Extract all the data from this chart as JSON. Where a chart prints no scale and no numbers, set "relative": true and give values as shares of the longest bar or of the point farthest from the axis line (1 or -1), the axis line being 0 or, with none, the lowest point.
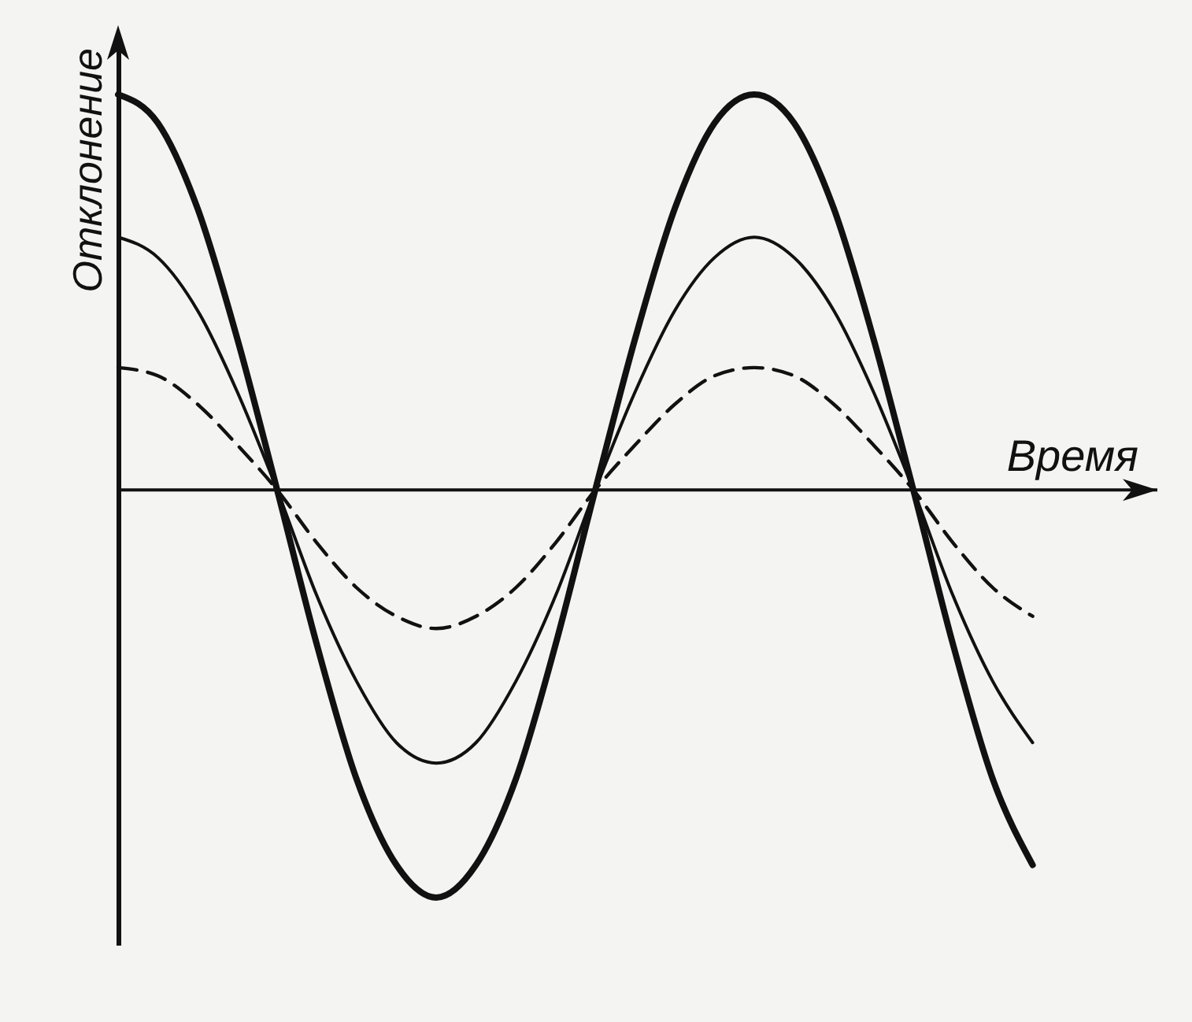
{
  "chart_data": {
    "type": "line",
    "relative": true,
    "xlabel": "Время",
    "ylabel": "Отклонение",
    "grid": false,
    "marker": "none",
    "categories": [
      null,
      null,
      null,
      null,
      null,
      null,
      null,
      null,
      null,
      null,
      null,
      null,
      null,
      null,
      null,
      null,
      null,
      null,
      null,
      null,
      null,
      null,
      null,
      null
    ],
    "series": [
      {
        "color": "#111111",
        "line_style": "solid",
        "values": [
          0.97,
          0.9,
          0.69,
          0.37,
          0,
          -0.38,
          -0.71,
          -0.92,
          -1,
          -0.92,
          -0.71,
          -0.38,
          0,
          0.37,
          0.69,
          0.9,
          0.97,
          0.9,
          0.69,
          0.37,
          0,
          -0.38,
          -0.71,
          -0.92
        ]
      },
      {
        "color": "#111111",
        "line_style": "solid",
        "values": [
          0.62,
          0.57,
          0.44,
          0.24,
          0,
          -0.26,
          -0.47,
          -0.62,
          -0.67,
          -0.62,
          -0.47,
          -0.26,
          0,
          0.24,
          0.44,
          0.57,
          0.62,
          0.57,
          0.44,
          0.24,
          0,
          -0.26,
          -0.47,
          -0.62
        ]
      },
      {
        "color": "#111111",
        "line_style": "dashed",
        "values": [
          0.3,
          0.28,
          0.21,
          0.11,
          0,
          -0.13,
          -0.24,
          -0.31,
          -0.34,
          -0.31,
          -0.24,
          -0.13,
          0,
          0.11,
          0.21,
          0.28,
          0.3,
          0.28,
          0.21,
          0.11,
          0,
          -0.13,
          -0.24,
          -0.31
        ]
      }
    ]
  }
}
